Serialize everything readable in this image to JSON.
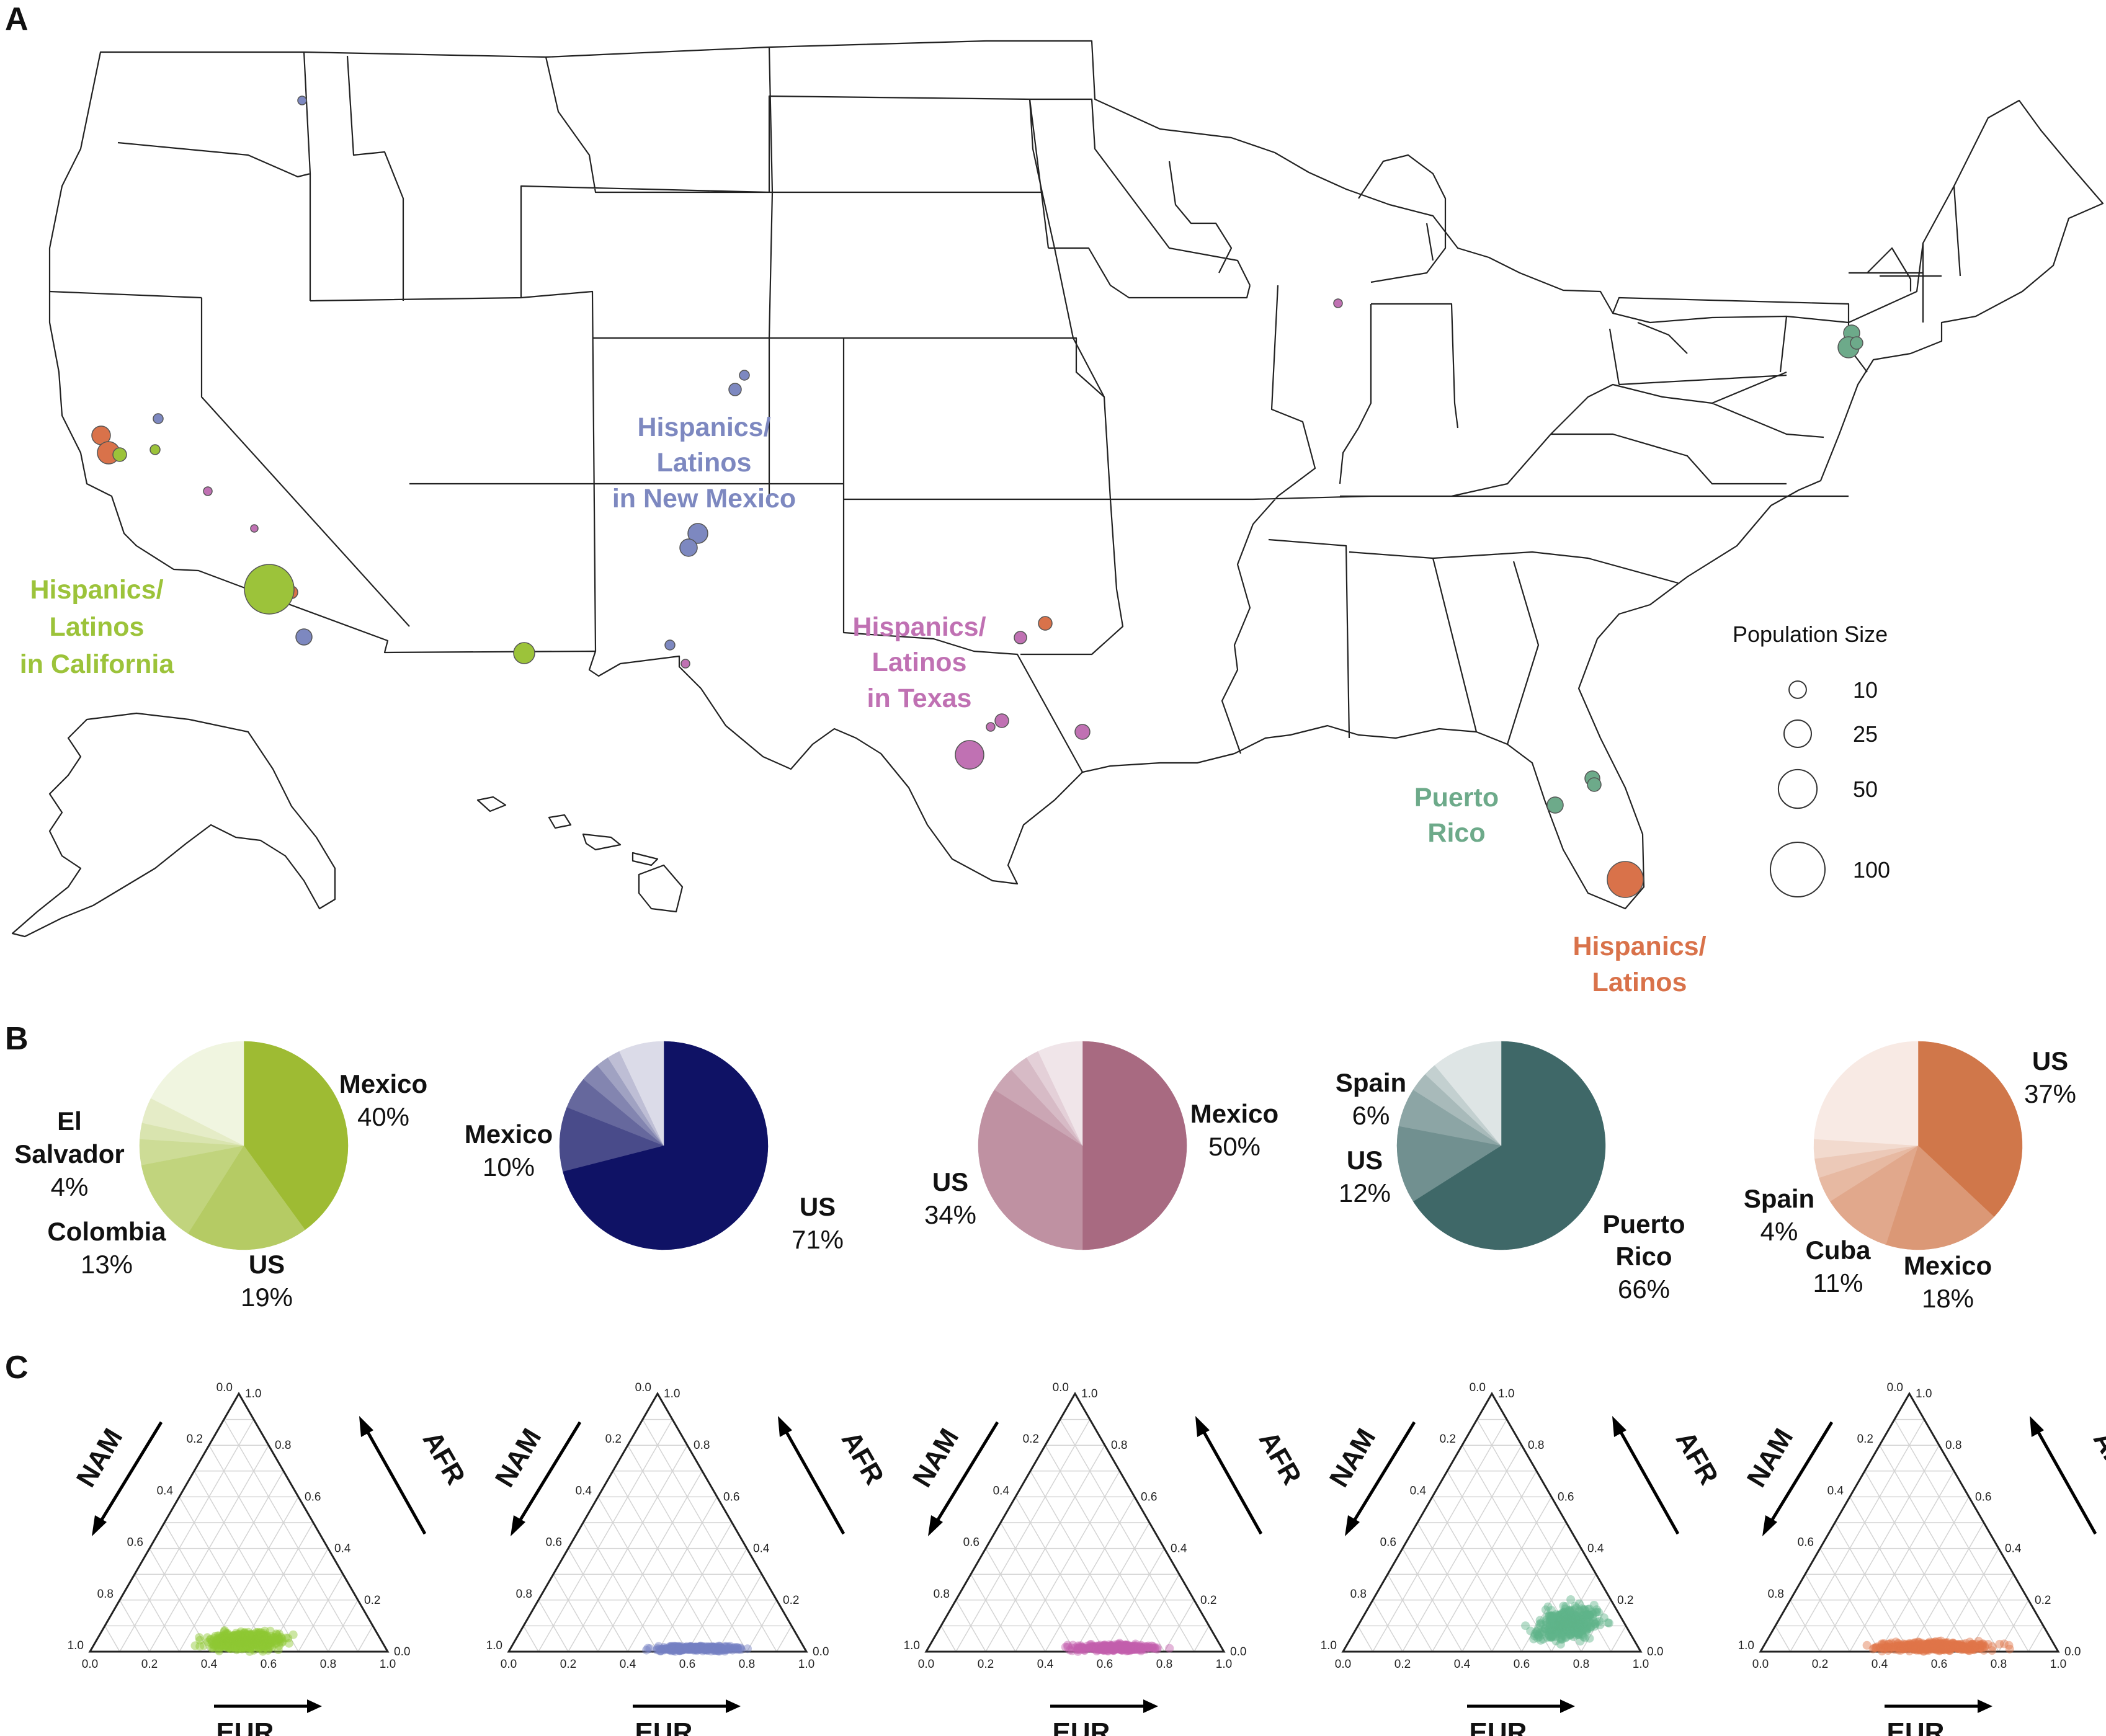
{
  "panels": {
    "a": "A",
    "b": "B",
    "c": "C"
  },
  "map": {
    "group_labels": [
      {
        "id": "california",
        "lines": [
          "Hispanics/",
          "Latinos",
          "in California"
        ],
        "color": "#9cc33a"
      },
      {
        "id": "new_mexico",
        "lines": [
          "Hispanics/",
          "Latinos",
          "in New Mexico"
        ],
        "color": "#7d88c0"
      },
      {
        "id": "texas",
        "lines": [
          "Hispanics/",
          "Latinos",
          "in Texas"
        ],
        "color": "#c071b3"
      },
      {
        "id": "puerto_rico",
        "lines": [
          "Puerto",
          "Rico"
        ],
        "color": "#6daa8a"
      },
      {
        "id": "latinos",
        "lines": [
          "Hispanics/",
          "Latinos"
        ],
        "color": "#d9724a"
      }
    ],
    "legend": {
      "title": "Population Size",
      "entries": [
        {
          "value": 10,
          "label": "10"
        },
        {
          "value": 25,
          "label": "25"
        },
        {
          "value": 50,
          "label": "50"
        },
        {
          "value": 100,
          "label": "100"
        }
      ]
    }
  },
  "chart_data": [
    {
      "type": "pie",
      "id": "pie-california",
      "base_color": "#9ebb33",
      "slices": [
        {
          "name": "Mexico",
          "pct_label": "40%",
          "value": 40
        },
        {
          "name": "US",
          "pct_label": "19%",
          "value": 19
        },
        {
          "name": "Colombia",
          "pct_label": "13%",
          "value": 13
        },
        {
          "name": "",
          "pct_label": "",
          "value": 4
        },
        {
          "name": "",
          "pct_label": "",
          "value": 2.5
        },
        {
          "name": "El Salvador",
          "pct_label": "4%",
          "value": 4
        },
        {
          "name": "",
          "pct_label": "",
          "value": 17.5
        }
      ]
    },
    {
      "type": "pie",
      "id": "pie-new-mexico",
      "base_color": "#0f1265",
      "slices": [
        {
          "name": "US",
          "pct_label": "71%",
          "value": 71
        },
        {
          "name": "Mexico",
          "pct_label": "10%",
          "value": 10
        },
        {
          "name": "",
          "pct_label": "",
          "value": 5
        },
        {
          "name": "",
          "pct_label": "",
          "value": 3
        },
        {
          "name": "",
          "pct_label": "",
          "value": 2
        },
        {
          "name": "",
          "pct_label": "",
          "value": 2
        },
        {
          "name": "",
          "pct_label": "",
          "value": 7
        }
      ]
    },
    {
      "type": "pie",
      "id": "pie-texas",
      "base_color": "#a86a81",
      "slices": [
        {
          "name": "Mexico",
          "pct_label": "50%",
          "value": 50
        },
        {
          "name": "US",
          "pct_label": "34%",
          "value": 34
        },
        {
          "name": "",
          "pct_label": "",
          "value": 4
        },
        {
          "name": "",
          "pct_label": "",
          "value": 3
        },
        {
          "name": "",
          "pct_label": "",
          "value": 2
        },
        {
          "name": "",
          "pct_label": "",
          "value": 7
        }
      ]
    },
    {
      "type": "pie",
      "id": "pie-puerto-rico",
      "base_color": "#3f6868",
      "slices": [
        {
          "name": "Puerto Rico",
          "pct_label": "66%",
          "value": 66
        },
        {
          "name": "US",
          "pct_label": "12%",
          "value": 12
        },
        {
          "name": "Spain",
          "pct_label": "6%",
          "value": 6
        },
        {
          "name": "",
          "pct_label": "",
          "value": 3
        },
        {
          "name": "",
          "pct_label": "",
          "value": 2
        },
        {
          "name": "",
          "pct_label": "",
          "value": 11
        }
      ]
    },
    {
      "type": "pie",
      "id": "pie-latinos",
      "base_color": "#d0774a",
      "slices": [
        {
          "name": "US",
          "pct_label": "37%",
          "value": 37
        },
        {
          "name": "Mexico",
          "pct_label": "18%",
          "value": 18
        },
        {
          "name": "Cuba",
          "pct_label": "11%",
          "value": 11
        },
        {
          "name": "Spain",
          "pct_label": "4%",
          "value": 4
        },
        {
          "name": "",
          "pct_label": "",
          "value": 3
        },
        {
          "name": "",
          "pct_label": "",
          "value": 3
        },
        {
          "name": "",
          "pct_label": "",
          "value": 24
        }
      ]
    },
    {
      "type": "scatter",
      "id": "ternary",
      "axes": {
        "bottom": "EUR",
        "left": "NAM",
        "right": "AFR"
      },
      "ticks": [
        "0.0",
        "0.2",
        "0.4",
        "0.6",
        "0.8",
        "1.0"
      ],
      "panels": [
        {
          "id": "california",
          "color": "#8fc832",
          "eur_range": [
            0.2,
            0.8
          ],
          "afr_range": [
            0.0,
            0.16
          ],
          "n": 420
        },
        {
          "id": "new_mexico",
          "color": "#7680c3",
          "eur_range": [
            0.3,
            0.95
          ],
          "afr_range": [
            0.0,
            0.05
          ],
          "n": 300
        },
        {
          "id": "texas",
          "color": "#c460ad",
          "eur_range": [
            0.3,
            0.95
          ],
          "afr_range": [
            0.0,
            0.06
          ],
          "n": 300
        },
        {
          "id": "puerto_rico",
          "color": "#5fb38a",
          "eur_range": [
            0.45,
            0.95
          ],
          "afr_range": [
            0.03,
            0.35
          ],
          "n": 360
        },
        {
          "id": "latinos",
          "color": "#e0764a",
          "eur_range": [
            0.15,
            1.0
          ],
          "afr_range": [
            0.0,
            0.08
          ],
          "n": 420
        }
      ]
    }
  ]
}
